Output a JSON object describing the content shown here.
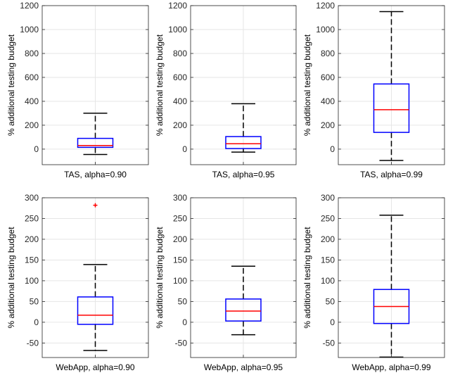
{
  "chart_data": [
    {
      "type": "box",
      "category": "TAS, alpha=0.90",
      "ylabel": "% additional testing budget",
      "ylim": [
        -130,
        1200
      ],
      "yticks": [
        0,
        200,
        400,
        600,
        800,
        1000,
        1200
      ],
      "grid": true,
      "box": {
        "whisker_low": -45,
        "q1": 15,
        "median": 30,
        "q3": 90,
        "whisker_high": 300
      },
      "outliers": []
    },
    {
      "type": "box",
      "category": "TAS, alpha=0.95",
      "ylabel": "% additional testing budget",
      "ylim": [
        -130,
        1200
      ],
      "yticks": [
        0,
        200,
        400,
        600,
        800,
        1000,
        1200
      ],
      "grid": true,
      "box": {
        "whisker_low": -25,
        "q1": 5,
        "median": 45,
        "q3": 105,
        "whisker_high": 380
      },
      "outliers": []
    },
    {
      "type": "box",
      "category": "TAS, alpha=0.99",
      "ylabel": "% additional testing budget",
      "ylim": [
        -130,
        1200
      ],
      "yticks": [
        0,
        200,
        400,
        600,
        800,
        1000,
        1200
      ],
      "grid": true,
      "box": {
        "whisker_low": -95,
        "q1": 140,
        "median": 330,
        "q3": 545,
        "whisker_high": 1150
      },
      "outliers": []
    },
    {
      "type": "box",
      "category": "WebApp, alpha=0.90",
      "ylabel": "% additional testing budget",
      "ylim": [
        -85,
        300
      ],
      "yticks": [
        -50,
        0,
        50,
        100,
        150,
        200,
        250,
        300
      ],
      "grid": true,
      "box": {
        "whisker_low": -68,
        "q1": -5,
        "median": 17,
        "q3": 61,
        "whisker_high": 139
      },
      "outliers": [
        282
      ]
    },
    {
      "type": "box",
      "category": "WebApp, alpha=0.95",
      "ylabel": "% additional testing budget",
      "ylim": [
        -85,
        300
      ],
      "yticks": [
        -50,
        0,
        50,
        100,
        150,
        200,
        250,
        300
      ],
      "grid": true,
      "box": {
        "whisker_low": -30,
        "q1": 3,
        "median": 27,
        "q3": 56,
        "whisker_high": 135
      },
      "outliers": []
    },
    {
      "type": "box",
      "category": "WebApp, alpha=0.99",
      "ylabel": "% additional testing budget",
      "ylim": [
        -85,
        300
      ],
      "yticks": [
        -50,
        0,
        50,
        100,
        150,
        200,
        250,
        300
      ],
      "grid": true,
      "box": {
        "whisker_low": -84,
        "q1": -3,
        "median": 38,
        "q3": 79,
        "whisker_high": 258
      },
      "outliers": []
    }
  ],
  "colors": {
    "box": "#0000ff",
    "median": "#ff0000",
    "whisker": "#000000",
    "outlier": "#ff0000",
    "grid": "#e6e6e6",
    "axes": "#262626"
  }
}
